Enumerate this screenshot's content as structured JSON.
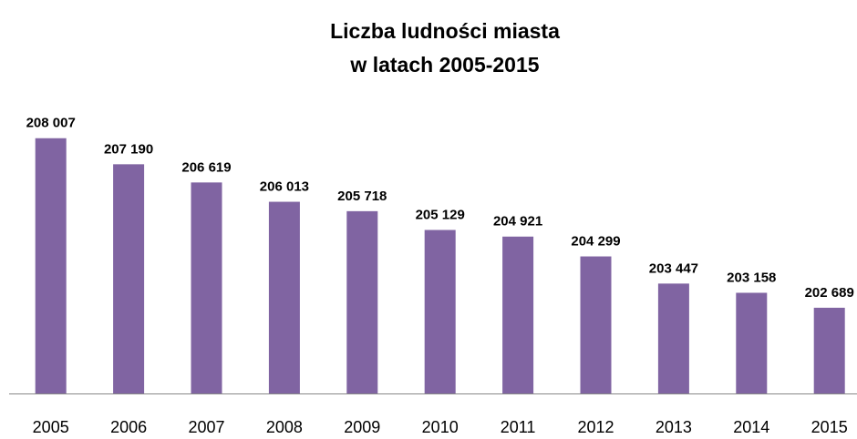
{
  "chart_data": {
    "type": "bar",
    "title": [
      "Liczba ludności miasta",
      "w latach 2005-2015"
    ],
    "categories": [
      "2005",
      "2006",
      "2007",
      "2008",
      "2009",
      "2010",
      "2011",
      "2012",
      "2013",
      "2014",
      "2015"
    ],
    "values": [
      208007,
      207190,
      206619,
      206013,
      205718,
      205129,
      204921,
      204299,
      203447,
      203158,
      202689
    ],
    "value_labels": [
      "208 007",
      "207 190",
      "206 619",
      "206 013",
      "205 718",
      "205 129",
      "204 921",
      "204 299",
      "203 447",
      "203 158",
      "202 689"
    ],
    "color": "#8064a2",
    "ylim": [
      200000,
      210000
    ],
    "grid": false
  }
}
